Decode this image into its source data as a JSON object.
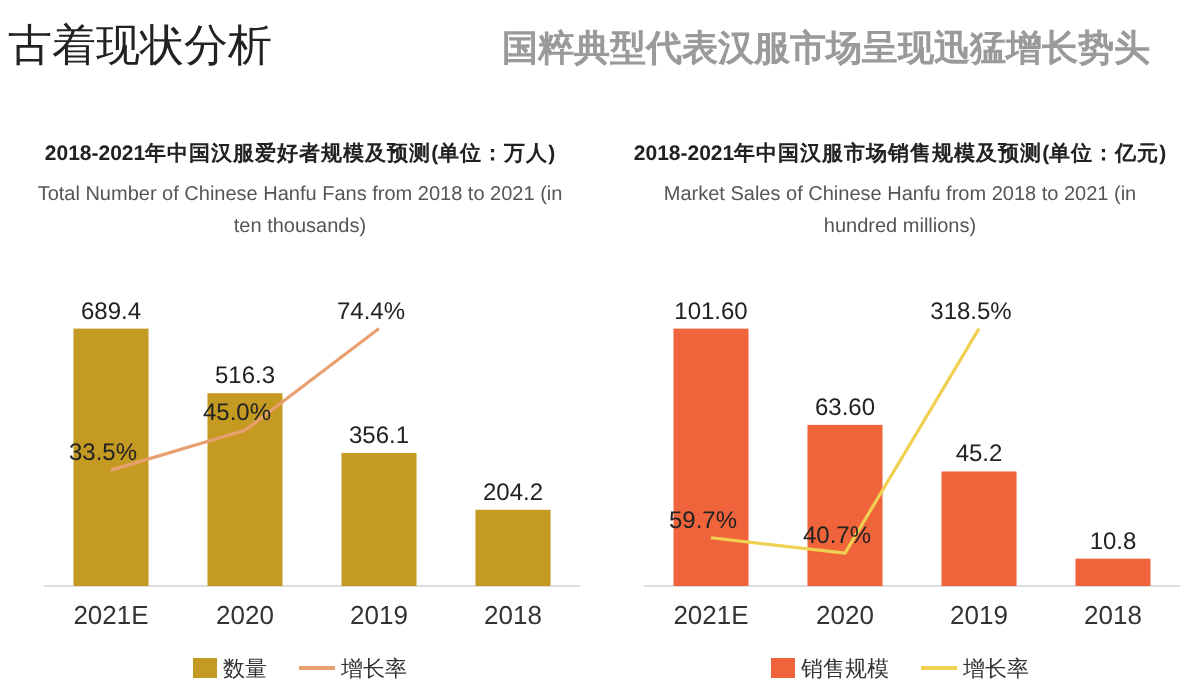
{
  "chart_data": [
    {
      "type": "other",
      "title": "古着现状分析",
      "subtitle": "国粹典型代表汉服市场呈现迅猛增长势头"
    },
    {
      "type": "bar",
      "title": "2018-2021年中国汉服爱好者规模及预测(单位：万人)",
      "subtitle": "Total Number of Chinese Hanfu Fans from 2018 to 2021 (in ten thousands)",
      "categories": [
        "2021E",
        "2020",
        "2019",
        "2018"
      ],
      "legend": "bottom",
      "series": [
        {
          "name": "数量",
          "type": "bar",
          "color": "#c49a22",
          "values": [
            689.4,
            516.3,
            356.1,
            204.2
          ],
          "value_labels": [
            "689.4",
            "516.3",
            "356.1",
            "204.2"
          ]
        },
        {
          "name": "增长率",
          "type": "line",
          "axis": "y2",
          "color": "#e8a070",
          "values": [
            33.5,
            45.0,
            74.4,
            null
          ],
          "value_labels": [
            "33.5%",
            "45.0%",
            "74.4%",
            null
          ]
        }
      ]
    },
    {
      "type": "bar",
      "title": "2018-2021年中国汉服市场销售规模及预测(单位：亿元)",
      "subtitle": "Market Sales of Chinese Hanfu from 2018 to 2021 (in hundred millions)",
      "categories": [
        "2021E",
        "2020",
        "2019",
        "2018"
      ],
      "legend": "bottom",
      "series": [
        {
          "name": "销售规模",
          "type": "bar",
          "color": "#f0643c",
          "values": [
            101.6,
            63.6,
            45.2,
            10.8
          ],
          "value_labels": [
            "101.60",
            "63.60",
            "45.2",
            "10.8"
          ]
        },
        {
          "name": "增长率",
          "type": "line",
          "axis": "y2",
          "color": "#f0d050",
          "values": [
            59.7,
            40.7,
            318.5,
            null
          ],
          "value_labels": [
            "59.7%",
            "40.7%",
            "318.5%",
            null
          ]
        }
      ]
    }
  ]
}
